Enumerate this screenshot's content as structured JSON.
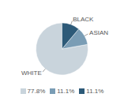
{
  "chart_data": {
    "type": "pie",
    "categories": [
      "WHITE",
      "ASIAN",
      "BLACK"
    ],
    "values": [
      77.8,
      11.1,
      11.1
    ],
    "value_labels": [
      "77.8%",
      "11.1%",
      "11.1%"
    ],
    "colors": [
      "#c9d4dc",
      "#7a9db5",
      "#2d5a78"
    ],
    "legend": "bottom"
  }
}
